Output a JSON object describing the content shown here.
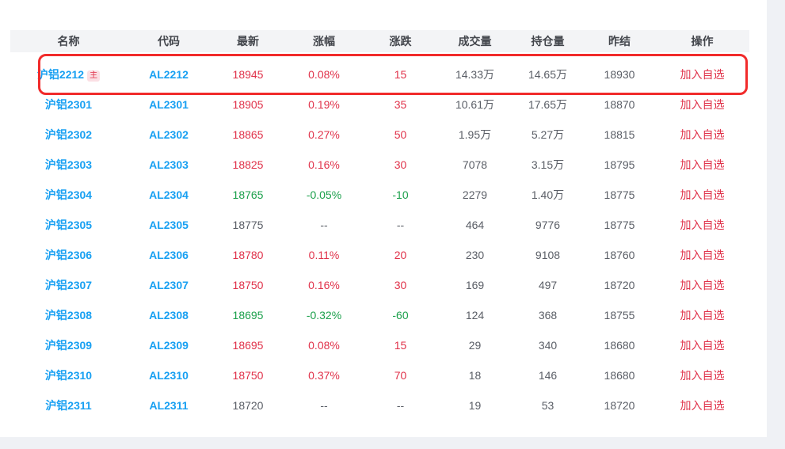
{
  "colors": {
    "page_bg": "#eff1f5",
    "panel_bg": "#ffffff",
    "header_bg": "#f3f4f6",
    "header_text": "#43464c",
    "link_blue": "#18a0f2",
    "up_red": "#e0324a",
    "down_green": "#1ca04c",
    "neutral_gray": "#5a5e66",
    "action_red": "#e0324a",
    "badge_bg": "#fbdfe4",
    "highlight_border": "#f12b2b"
  },
  "table": {
    "headers": [
      "名称",
      "代码",
      "最新",
      "涨幅",
      "涨跌",
      "成交量",
      "持仓量",
      "昨结",
      "操作"
    ],
    "action_label": "加入自选",
    "main_badge": "主",
    "rows": [
      {
        "name": "沪铝2212",
        "code": "AL2212",
        "main": true,
        "last": "18945",
        "change_pct": "0.08%",
        "change": "15",
        "volume": "14.33万",
        "open_interest": "14.65万",
        "prev_settle": "18930",
        "trend": "up",
        "highlighted": true
      },
      {
        "name": "沪铝2301",
        "code": "AL2301",
        "main": false,
        "last": "18905",
        "change_pct": "0.19%",
        "change": "35",
        "volume": "10.61万",
        "open_interest": "17.65万",
        "prev_settle": "18870",
        "trend": "up",
        "highlighted": false
      },
      {
        "name": "沪铝2302",
        "code": "AL2302",
        "main": false,
        "last": "18865",
        "change_pct": "0.27%",
        "change": "50",
        "volume": "1.95万",
        "open_interest": "5.27万",
        "prev_settle": "18815",
        "trend": "up",
        "highlighted": false
      },
      {
        "name": "沪铝2303",
        "code": "AL2303",
        "main": false,
        "last": "18825",
        "change_pct": "0.16%",
        "change": "30",
        "volume": "7078",
        "open_interest": "3.15万",
        "prev_settle": "18795",
        "trend": "up",
        "highlighted": false
      },
      {
        "name": "沪铝2304",
        "code": "AL2304",
        "main": false,
        "last": "18765",
        "change_pct": "-0.05%",
        "change": "-10",
        "volume": "2279",
        "open_interest": "1.40万",
        "prev_settle": "18775",
        "trend": "down",
        "highlighted": false
      },
      {
        "name": "沪铝2305",
        "code": "AL2305",
        "main": false,
        "last": "18775",
        "change_pct": "--",
        "change": "--",
        "volume": "464",
        "open_interest": "9776",
        "prev_settle": "18775",
        "trend": "flat",
        "highlighted": false
      },
      {
        "name": "沪铝2306",
        "code": "AL2306",
        "main": false,
        "last": "18780",
        "change_pct": "0.11%",
        "change": "20",
        "volume": "230",
        "open_interest": "9108",
        "prev_settle": "18760",
        "trend": "up",
        "highlighted": false
      },
      {
        "name": "沪铝2307",
        "code": "AL2307",
        "main": false,
        "last": "18750",
        "change_pct": "0.16%",
        "change": "30",
        "volume": "169",
        "open_interest": "497",
        "prev_settle": "18720",
        "trend": "up",
        "highlighted": false
      },
      {
        "name": "沪铝2308",
        "code": "AL2308",
        "main": false,
        "last": "18695",
        "change_pct": "-0.32%",
        "change": "-60",
        "volume": "124",
        "open_interest": "368",
        "prev_settle": "18755",
        "trend": "down",
        "highlighted": false
      },
      {
        "name": "沪铝2309",
        "code": "AL2309",
        "main": false,
        "last": "18695",
        "change_pct": "0.08%",
        "change": "15",
        "volume": "29",
        "open_interest": "340",
        "prev_settle": "18680",
        "trend": "up",
        "highlighted": false
      },
      {
        "name": "沪铝2310",
        "code": "AL2310",
        "main": false,
        "last": "18750",
        "change_pct": "0.37%",
        "change": "70",
        "volume": "18",
        "open_interest": "146",
        "prev_settle": "18680",
        "trend": "up",
        "highlighted": false
      },
      {
        "name": "沪铝2311",
        "code": "AL2311",
        "main": false,
        "last": "18720",
        "change_pct": "--",
        "change": "--",
        "volume": "19",
        "open_interest": "53",
        "prev_settle": "18720",
        "trend": "flat",
        "highlighted": false
      }
    ]
  }
}
